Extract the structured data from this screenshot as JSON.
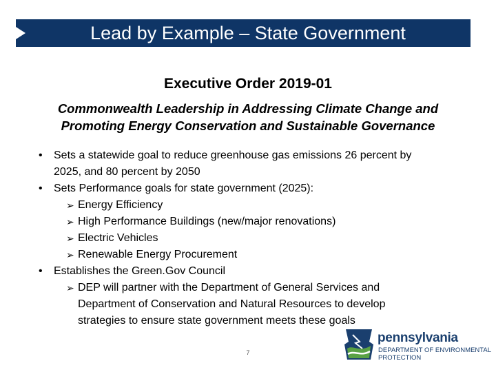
{
  "header": {
    "title": "Lead by Example – State Government"
  },
  "order": {
    "number": "Executive Order 2019-01",
    "subtitle_lines": [
      "Commonwealth Leadership in Addressing Climate Change and",
      "Promoting Energy Conservation and Sustainable Governance"
    ]
  },
  "bullets": {
    "b1_line1": "Sets a statewide goal to reduce greenhouse gas emissions 26 percent by",
    "b1_line2": "2025, and 80 percent by 2050",
    "b2": "Sets Performance goals for state government (2025):",
    "b2_sub": [
      "Energy Efficiency",
      "High Performance Buildings (new/major renovations)",
      "Electric Vehicles",
      "Renewable Energy Procurement"
    ],
    "b3": "Establishes the Green.Gov Council",
    "b3_sub_lines": [
      "DEP will partner with the Department of General Services and",
      "Department of Conservation and Natural Resources to develop",
      "strategies to ensure state government meets these goals"
    ]
  },
  "footer": {
    "page_number": "7",
    "logo_name": "pennsylvania",
    "logo_dept_line1": "DEPARTMENT OF ENVIRONMENTAL",
    "logo_dept_line2": "PROTECTION"
  },
  "colors": {
    "title_bar": "#0f3566",
    "logo_blue": "#1a3f6e",
    "logo_green": "#5aa145"
  },
  "icons": {
    "bullet": "bullet-dot",
    "sub_bullet": "arrow-bullet-icon",
    "title_marker": "triangle-marker-icon",
    "logo": "pa-keystone-logo-icon"
  }
}
